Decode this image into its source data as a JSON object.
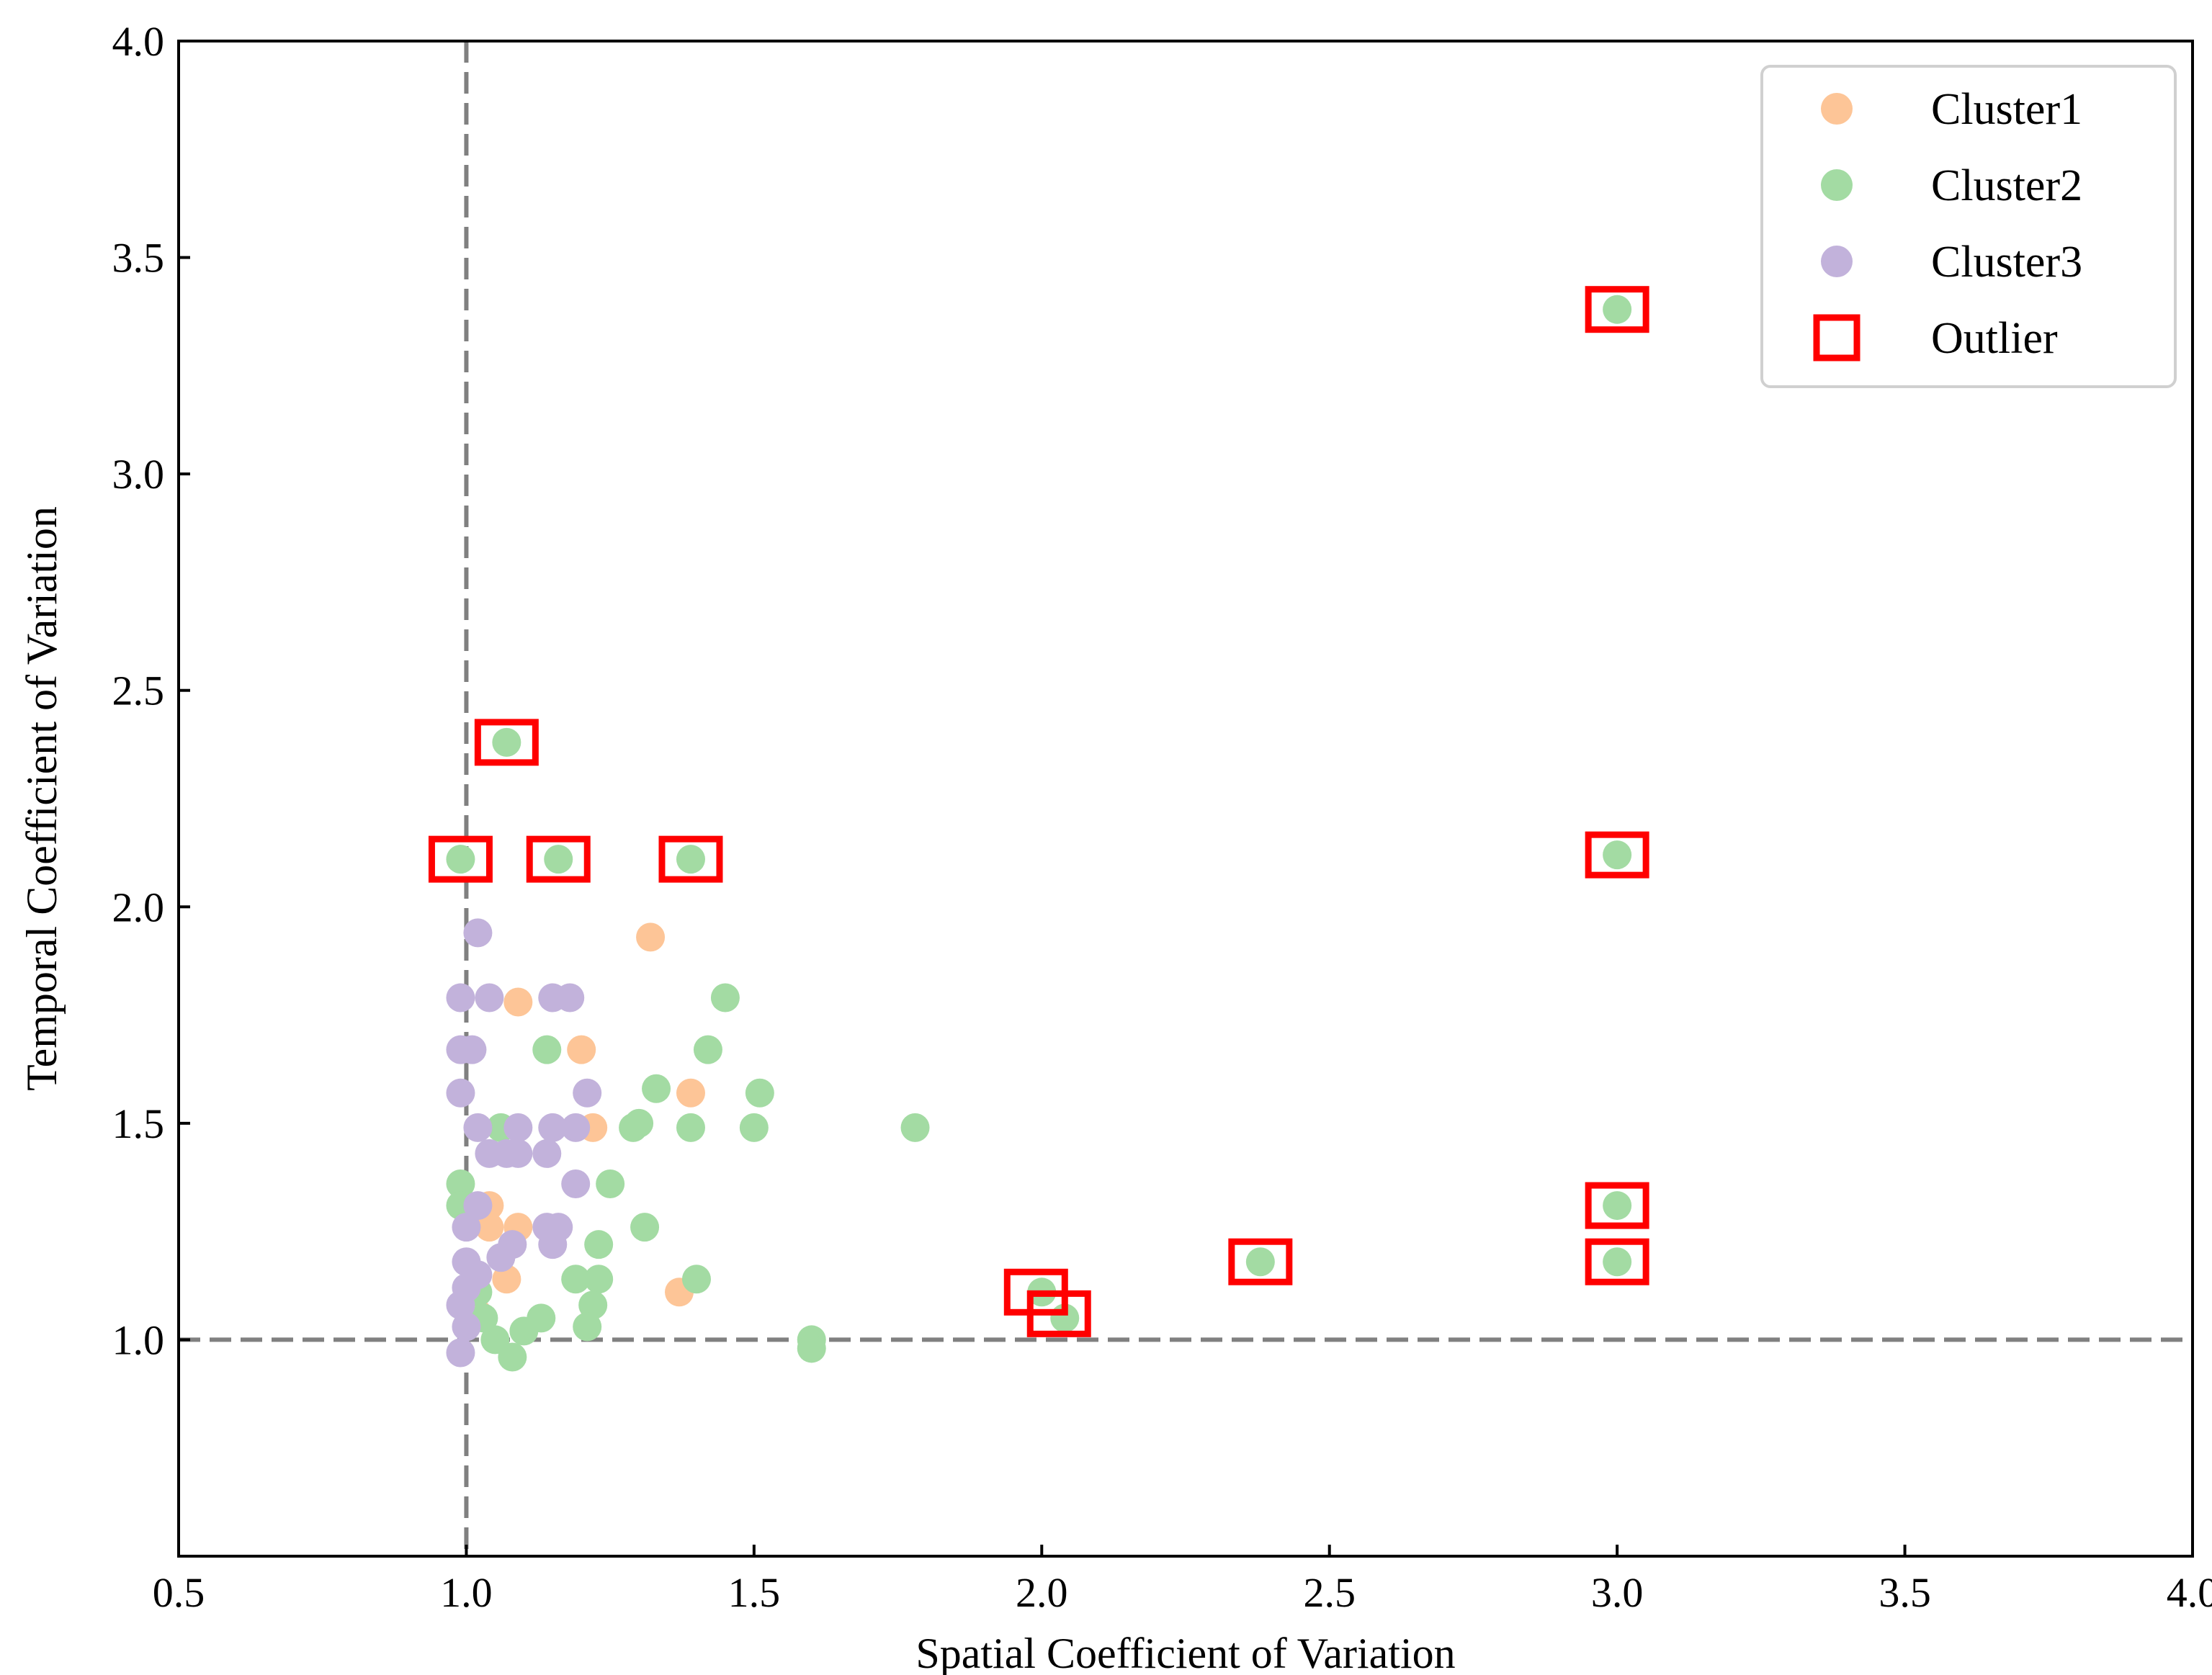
{
  "chart_data": {
    "type": "scatter",
    "xlabel": "Spatial Coefficient of Variation",
    "ylabel": "Temporal Coefficient of Variation",
    "xlim": [
      0.5,
      4.0
    ],
    "ylim": [
      0.5,
      4.0
    ],
    "xticks": [
      "0.5",
      "1.0",
      "1.5",
      "2.0",
      "2.5",
      "3.0",
      "3.5",
      "4.0"
    ],
    "yticks": [
      "1.0",
      "1.5",
      "2.0",
      "2.5",
      "3.0",
      "3.5",
      "4.0"
    ],
    "grid": false,
    "legend_position": "top-right",
    "reference_lines": [
      {
        "orientation": "vertical",
        "value": 1.0,
        "style": "dashed",
        "color": "#808080"
      },
      {
        "orientation": "horizontal",
        "value": 1.0,
        "style": "dashed",
        "color": "#808080"
      }
    ],
    "series": [
      {
        "name": "Cluster1",
        "marker": "circle",
        "color": "#FDC597",
        "points": [
          [
            1.32,
            1.93
          ],
          [
            1.09,
            1.78
          ],
          [
            1.2,
            1.67
          ],
          [
            1.39,
            1.57
          ],
          [
            1.22,
            1.49
          ],
          [
            1.04,
            1.31
          ],
          [
            1.04,
            1.26
          ],
          [
            1.09,
            1.26
          ],
          [
            1.07,
            1.14
          ],
          [
            1.37,
            1.11
          ],
          [
            1.02,
            1.06
          ]
        ]
      },
      {
        "name": "Cluster2",
        "marker": "circle",
        "color": "#A3DBA3",
        "points": [
          [
            1.07,
            2.38
          ],
          [
            0.99,
            2.11
          ],
          [
            1.16,
            2.11
          ],
          [
            1.39,
            2.11
          ],
          [
            3.0,
            3.38
          ],
          [
            3.0,
            2.12
          ],
          [
            3.0,
            1.31
          ],
          [
            3.0,
            1.18
          ],
          [
            2.38,
            1.18
          ],
          [
            2.0,
            1.11
          ],
          [
            2.04,
            1.05
          ],
          [
            1.45,
            1.79
          ],
          [
            1.14,
            1.67
          ],
          [
            1.42,
            1.67
          ],
          [
            1.33,
            1.58
          ],
          [
            1.51,
            1.57
          ],
          [
            1.78,
            1.49
          ],
          [
            1.29,
            1.49
          ],
          [
            1.3,
            1.5
          ],
          [
            1.39,
            1.49
          ],
          [
            1.5,
            1.49
          ],
          [
            1.06,
            1.49
          ],
          [
            0.99,
            1.36
          ],
          [
            1.25,
            1.36
          ],
          [
            0.99,
            1.31
          ],
          [
            1.31,
            1.26
          ],
          [
            1.23,
            1.22
          ],
          [
            1.19,
            1.14
          ],
          [
            1.23,
            1.14
          ],
          [
            1.4,
            1.14
          ],
          [
            1.02,
            1.11
          ],
          [
            1.22,
            1.08
          ],
          [
            1.21,
            1.03
          ],
          [
            1.13,
            1.05
          ],
          [
            1.1,
            1.02
          ],
          [
            1.05,
            1.0
          ],
          [
            1.08,
            0.96
          ],
          [
            1.6,
            1.0
          ],
          [
            1.6,
            0.98
          ],
          [
            1.03,
            1.05
          ]
        ]
      },
      {
        "name": "Cluster3",
        "marker": "circle",
        "color": "#C2B2DB",
        "points": [
          [
            1.02,
            1.94
          ],
          [
            0.99,
            1.79
          ],
          [
            1.04,
            1.79
          ],
          [
            1.15,
            1.79
          ],
          [
            1.18,
            1.79
          ],
          [
            0.99,
            1.67
          ],
          [
            1.01,
            1.67
          ],
          [
            0.99,
            1.57
          ],
          [
            1.21,
            1.57
          ],
          [
            1.02,
            1.49
          ],
          [
            1.09,
            1.49
          ],
          [
            1.15,
            1.49
          ],
          [
            1.19,
            1.49
          ],
          [
            1.04,
            1.43
          ],
          [
            1.07,
            1.43
          ],
          [
            1.09,
            1.43
          ],
          [
            1.14,
            1.43
          ],
          [
            1.19,
            1.36
          ],
          [
            1.02,
            1.31
          ],
          [
            1.0,
            1.26
          ],
          [
            1.14,
            1.26
          ],
          [
            1.16,
            1.26
          ],
          [
            1.08,
            1.22
          ],
          [
            1.15,
            1.22
          ],
          [
            1.06,
            1.19
          ],
          [
            1.0,
            1.18
          ],
          [
            1.02,
            1.15
          ],
          [
            0.99,
            1.08
          ],
          [
            1.0,
            1.03
          ],
          [
            0.99,
            0.97
          ],
          [
            1.0,
            1.12
          ]
        ]
      }
    ],
    "outliers": {
      "name": "Outlier",
      "marker": "square-open",
      "color": "#FF0000",
      "points": [
        [
          1.07,
          2.38
        ],
        [
          0.99,
          2.11
        ],
        [
          1.16,
          2.11
        ],
        [
          1.39,
          2.11
        ],
        [
          3.0,
          3.38
        ],
        [
          3.0,
          2.12
        ],
        [
          3.0,
          1.31
        ],
        [
          3.0,
          1.18
        ],
        [
          2.38,
          1.18
        ],
        [
          1.99,
          1.11
        ],
        [
          2.03,
          1.06
        ]
      ]
    },
    "legend": [
      {
        "label": "Cluster1",
        "marker": "circle",
        "color": "#FDC597"
      },
      {
        "label": "Cluster2",
        "marker": "circle",
        "color": "#A3DBA3"
      },
      {
        "label": "Cluster3",
        "marker": "circle",
        "color": "#C2B2DB"
      },
      {
        "label": "Outlier",
        "marker": "square-open",
        "color": "#FF0000"
      }
    ]
  }
}
